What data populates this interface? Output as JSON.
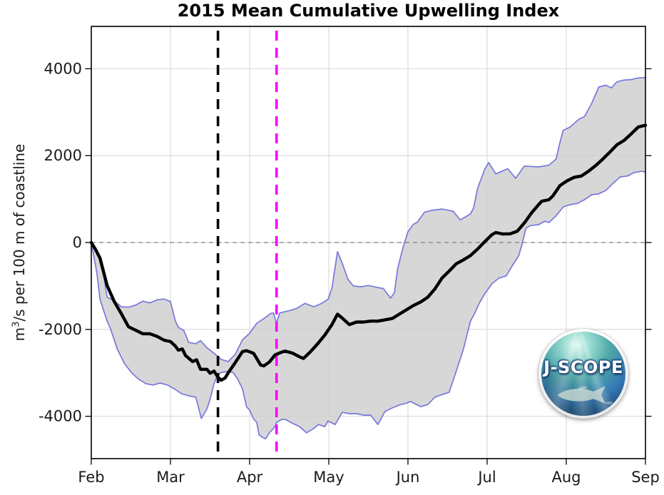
{
  "chart_data": {
    "type": "line",
    "title": "2015 Mean Cumulative Upwelling Index",
    "ylabel_parts": {
      "base": "m",
      "sup": "3",
      "rest": "/s per 100 m of coastline"
    },
    "xlabel": "",
    "x_unit": "months after Feb 1",
    "x_tick_labels": [
      "Feb",
      "Mar",
      "Apr",
      "May",
      "Jun",
      "Jul",
      "Aug",
      "Sep"
    ],
    "y_ticks": [
      -4000,
      -2000,
      0,
      2000,
      4000
    ],
    "ylim": [
      -4975,
      4975
    ],
    "grid": true,
    "legend": "none",
    "series": [
      {
        "name": "mean cumulative upwelling index",
        "color": "#000000",
        "points": [
          [
            0,
            0
          ],
          [
            0.05,
            -150
          ],
          [
            0.11,
            -360
          ],
          [
            0.2,
            -990
          ],
          [
            0.29,
            -1360
          ],
          [
            0.38,
            -1640
          ],
          [
            0.47,
            -1940
          ],
          [
            0.56,
            -2020
          ],
          [
            0.65,
            -2100
          ],
          [
            0.74,
            -2100
          ],
          [
            0.83,
            -2160
          ],
          [
            0.92,
            -2250
          ],
          [
            1,
            -2280
          ],
          [
            1.06,
            -2380
          ],
          [
            1.1,
            -2480
          ],
          [
            1.15,
            -2450
          ],
          [
            1.19,
            -2600
          ],
          [
            1.28,
            -2740
          ],
          [
            1.33,
            -2700
          ],
          [
            1.38,
            -2920
          ],
          [
            1.46,
            -2920
          ],
          [
            1.5,
            -3010
          ],
          [
            1.55,
            -2960
          ],
          [
            1.6,
            -3100
          ],
          [
            1.64,
            -3170
          ],
          [
            1.69,
            -3120
          ],
          [
            1.73,
            -3000
          ],
          [
            1.82,
            -2760
          ],
          [
            1.91,
            -2510
          ],
          [
            1.96,
            -2490
          ],
          [
            2.05,
            -2550
          ],
          [
            2.14,
            -2820
          ],
          [
            2.18,
            -2840
          ],
          [
            2.25,
            -2750
          ],
          [
            2.32,
            -2590
          ],
          [
            2.41,
            -2520
          ],
          [
            2.45,
            -2500
          ],
          [
            2.54,
            -2545
          ],
          [
            2.63,
            -2630
          ],
          [
            2.68,
            -2670
          ],
          [
            2.77,
            -2510
          ],
          [
            2.86,
            -2330
          ],
          [
            2.95,
            -2130
          ],
          [
            3.04,
            -1890
          ],
          [
            3.11,
            -1650
          ],
          [
            3.17,
            -1740
          ],
          [
            3.26,
            -1890
          ],
          [
            3.35,
            -1830
          ],
          [
            3.44,
            -1830
          ],
          [
            3.53,
            -1810
          ],
          [
            3.62,
            -1810
          ],
          [
            3.71,
            -1780
          ],
          [
            3.8,
            -1750
          ],
          [
            3.89,
            -1650
          ],
          [
            3.98,
            -1550
          ],
          [
            4.07,
            -1450
          ],
          [
            4.16,
            -1370
          ],
          [
            4.25,
            -1260
          ],
          [
            4.34,
            -1070
          ],
          [
            4.43,
            -820
          ],
          [
            4.52,
            -660
          ],
          [
            4.61,
            -490
          ],
          [
            4.7,
            -400
          ],
          [
            4.79,
            -300
          ],
          [
            4.88,
            -150
          ],
          [
            4.97,
            20
          ],
          [
            5.06,
            180
          ],
          [
            5.11,
            230
          ],
          [
            5.2,
            195
          ],
          [
            5.29,
            200
          ],
          [
            5.38,
            260
          ],
          [
            5.47,
            450
          ],
          [
            5.56,
            680
          ],
          [
            5.65,
            870
          ],
          [
            5.69,
            950
          ],
          [
            5.78,
            985
          ],
          [
            5.83,
            1070
          ],
          [
            5.92,
            1310
          ],
          [
            6.01,
            1420
          ],
          [
            6.1,
            1500
          ],
          [
            6.19,
            1530
          ],
          [
            6.28,
            1640
          ],
          [
            6.37,
            1770
          ],
          [
            6.46,
            1920
          ],
          [
            6.55,
            2080
          ],
          [
            6.64,
            2250
          ],
          [
            6.73,
            2350
          ],
          [
            6.82,
            2500
          ],
          [
            6.91,
            2660
          ],
          [
            7,
            2700
          ]
        ]
      },
      {
        "name": "upper uncertainty bound",
        "color": "#7878dc",
        "points": [
          [
            0,
            0
          ],
          [
            0.08,
            -200
          ],
          [
            0.15,
            -700
          ],
          [
            0.2,
            -1260
          ],
          [
            0.29,
            -1340
          ],
          [
            0.38,
            -1480
          ],
          [
            0.47,
            -1490
          ],
          [
            0.56,
            -1440
          ],
          [
            0.65,
            -1350
          ],
          [
            0.74,
            -1390
          ],
          [
            0.83,
            -1320
          ],
          [
            0.92,
            -1300
          ],
          [
            1,
            -1360
          ],
          [
            1.06,
            -1800
          ],
          [
            1.1,
            -1950
          ],
          [
            1.17,
            -2030
          ],
          [
            1.23,
            -2300
          ],
          [
            1.32,
            -2330
          ],
          [
            1.38,
            -2260
          ],
          [
            1.46,
            -2420
          ],
          [
            1.55,
            -2550
          ],
          [
            1.64,
            -2690
          ],
          [
            1.73,
            -2740
          ],
          [
            1.82,
            -2570
          ],
          [
            1.91,
            -2240
          ],
          [
            2,
            -2090
          ],
          [
            2.09,
            -1860
          ],
          [
            2.18,
            -1750
          ],
          [
            2.27,
            -1630
          ],
          [
            2.3,
            -1620
          ],
          [
            2.34,
            -1850
          ],
          [
            2.38,
            -1620
          ],
          [
            2.5,
            -1570
          ],
          [
            2.59,
            -1520
          ],
          [
            2.7,
            -1400
          ],
          [
            2.81,
            -1480
          ],
          [
            2.9,
            -1410
          ],
          [
            2.99,
            -1310
          ],
          [
            3.04,
            -1050
          ],
          [
            3.11,
            -210
          ],
          [
            3.17,
            -480
          ],
          [
            3.24,
            -840
          ],
          [
            3.31,
            -1000
          ],
          [
            3.4,
            -1020
          ],
          [
            3.5,
            -990
          ],
          [
            3.6,
            -1030
          ],
          [
            3.69,
            -1060
          ],
          [
            3.78,
            -1280
          ],
          [
            3.83,
            -1150
          ],
          [
            3.87,
            -600
          ],
          [
            3.94,
            -100
          ],
          [
            4,
            250
          ],
          [
            4.07,
            420
          ],
          [
            4.12,
            470
          ],
          [
            4.21,
            700
          ],
          [
            4.3,
            740
          ],
          [
            4.43,
            770
          ],
          [
            4.57,
            720
          ],
          [
            4.66,
            520
          ],
          [
            4.7,
            560
          ],
          [
            4.79,
            660
          ],
          [
            4.83,
            800
          ],
          [
            4.88,
            1250
          ],
          [
            4.97,
            1690
          ],
          [
            5.02,
            1840
          ],
          [
            5.11,
            1580
          ],
          [
            5.26,
            1700
          ],
          [
            5.36,
            1480
          ],
          [
            5.47,
            1760
          ],
          [
            5.65,
            1740
          ],
          [
            5.78,
            1780
          ],
          [
            5.87,
            1920
          ],
          [
            5.92,
            2300
          ],
          [
            5.96,
            2580
          ],
          [
            6.05,
            2660
          ],
          [
            6.16,
            2840
          ],
          [
            6.23,
            2900
          ],
          [
            6.32,
            3200
          ],
          [
            6.41,
            3580
          ],
          [
            6.5,
            3620
          ],
          [
            6.57,
            3560
          ],
          [
            6.64,
            3700
          ],
          [
            6.73,
            3740
          ],
          [
            6.82,
            3750
          ],
          [
            6.91,
            3790
          ],
          [
            7,
            3800
          ]
        ]
      },
      {
        "name": "lower uncertainty bound",
        "color": "#7878dc",
        "points": [
          [
            0,
            0
          ],
          [
            0.07,
            -700
          ],
          [
            0.11,
            -1310
          ],
          [
            0.2,
            -1810
          ],
          [
            0.24,
            -1970
          ],
          [
            0.33,
            -2460
          ],
          [
            0.42,
            -2790
          ],
          [
            0.51,
            -3000
          ],
          [
            0.6,
            -3150
          ],
          [
            0.69,
            -3250
          ],
          [
            0.78,
            -3280
          ],
          [
            0.87,
            -3235
          ],
          [
            0.96,
            -3280
          ],
          [
            1.05,
            -3370
          ],
          [
            1.14,
            -3480
          ],
          [
            1.23,
            -3530
          ],
          [
            1.32,
            -3560
          ],
          [
            1.39,
            -4050
          ],
          [
            1.46,
            -3830
          ],
          [
            1.5,
            -3610
          ],
          [
            1.55,
            -3250
          ],
          [
            1.59,
            -3070
          ],
          [
            1.64,
            -2990
          ],
          [
            1.73,
            -2970
          ],
          [
            1.79,
            -2990
          ],
          [
            1.85,
            -3150
          ],
          [
            1.91,
            -3370
          ],
          [
            1.96,
            -3780
          ],
          [
            2,
            -3860
          ],
          [
            2.05,
            -4060
          ],
          [
            2.09,
            -4140
          ],
          [
            2.12,
            -4430
          ],
          [
            2.16,
            -4480
          ],
          [
            2.2,
            -4520
          ],
          [
            2.25,
            -4380
          ],
          [
            2.32,
            -4240
          ],
          [
            2.34,
            -4140
          ],
          [
            2.41,
            -4070
          ],
          [
            2.45,
            -4070
          ],
          [
            2.54,
            -4160
          ],
          [
            2.63,
            -4240
          ],
          [
            2.72,
            -4380
          ],
          [
            2.81,
            -4280
          ],
          [
            2.87,
            -4190
          ],
          [
            2.95,
            -4240
          ],
          [
            2.99,
            -4110
          ],
          [
            3.08,
            -4190
          ],
          [
            3.17,
            -3910
          ],
          [
            3.26,
            -3940
          ],
          [
            3.35,
            -3940
          ],
          [
            3.44,
            -3975
          ],
          [
            3.53,
            -3975
          ],
          [
            3.62,
            -4190
          ],
          [
            3.71,
            -3890
          ],
          [
            3.8,
            -3810
          ],
          [
            3.89,
            -3740
          ],
          [
            3.98,
            -3700
          ],
          [
            4.03,
            -3660
          ],
          [
            4.12,
            -3740
          ],
          [
            4.16,
            -3780
          ],
          [
            4.25,
            -3730
          ],
          [
            4.34,
            -3560
          ],
          [
            4.43,
            -3500
          ],
          [
            4.52,
            -3450
          ],
          [
            4.61,
            -2960
          ],
          [
            4.7,
            -2460
          ],
          [
            4.79,
            -1810
          ],
          [
            4.84,
            -1640
          ],
          [
            4.9,
            -1400
          ],
          [
            4.97,
            -1180
          ],
          [
            5.06,
            -950
          ],
          [
            5.15,
            -820
          ],
          [
            5.24,
            -770
          ],
          [
            5.33,
            -500
          ],
          [
            5.4,
            -300
          ],
          [
            5.44,
            -50
          ],
          [
            5.49,
            330
          ],
          [
            5.55,
            390
          ],
          [
            5.65,
            410
          ],
          [
            5.73,
            490
          ],
          [
            5.78,
            460
          ],
          [
            5.87,
            610
          ],
          [
            5.96,
            820
          ],
          [
            6.05,
            870
          ],
          [
            6.14,
            900
          ],
          [
            6.23,
            985
          ],
          [
            6.32,
            1100
          ],
          [
            6.41,
            1120
          ],
          [
            6.5,
            1200
          ],
          [
            6.59,
            1360
          ],
          [
            6.68,
            1510
          ],
          [
            6.77,
            1530
          ],
          [
            6.86,
            1610
          ],
          [
            6.95,
            1640
          ],
          [
            7,
            1620
          ]
        ]
      }
    ],
    "annotations": [
      {
        "type": "vline",
        "name": "black-dashed-event-line",
        "x": 1.6,
        "color": "#000000",
        "style": "dashed"
      },
      {
        "type": "vline",
        "name": "magenta-dashed-event-line",
        "x": 2.34,
        "color": "#ff00ff",
        "style": "dashed"
      },
      {
        "type": "hline",
        "name": "zero-reference-line",
        "y": 0,
        "color": "#7f7f7f",
        "style": "dashed"
      }
    ],
    "band_fill_color": "rgba(206,206,206,0.82)",
    "envelope_line_color": "#7878dc",
    "grid_color": "#d7d7d7",
    "frame_color": "#000000"
  },
  "logo": {
    "text": "J-SCOPE"
  }
}
